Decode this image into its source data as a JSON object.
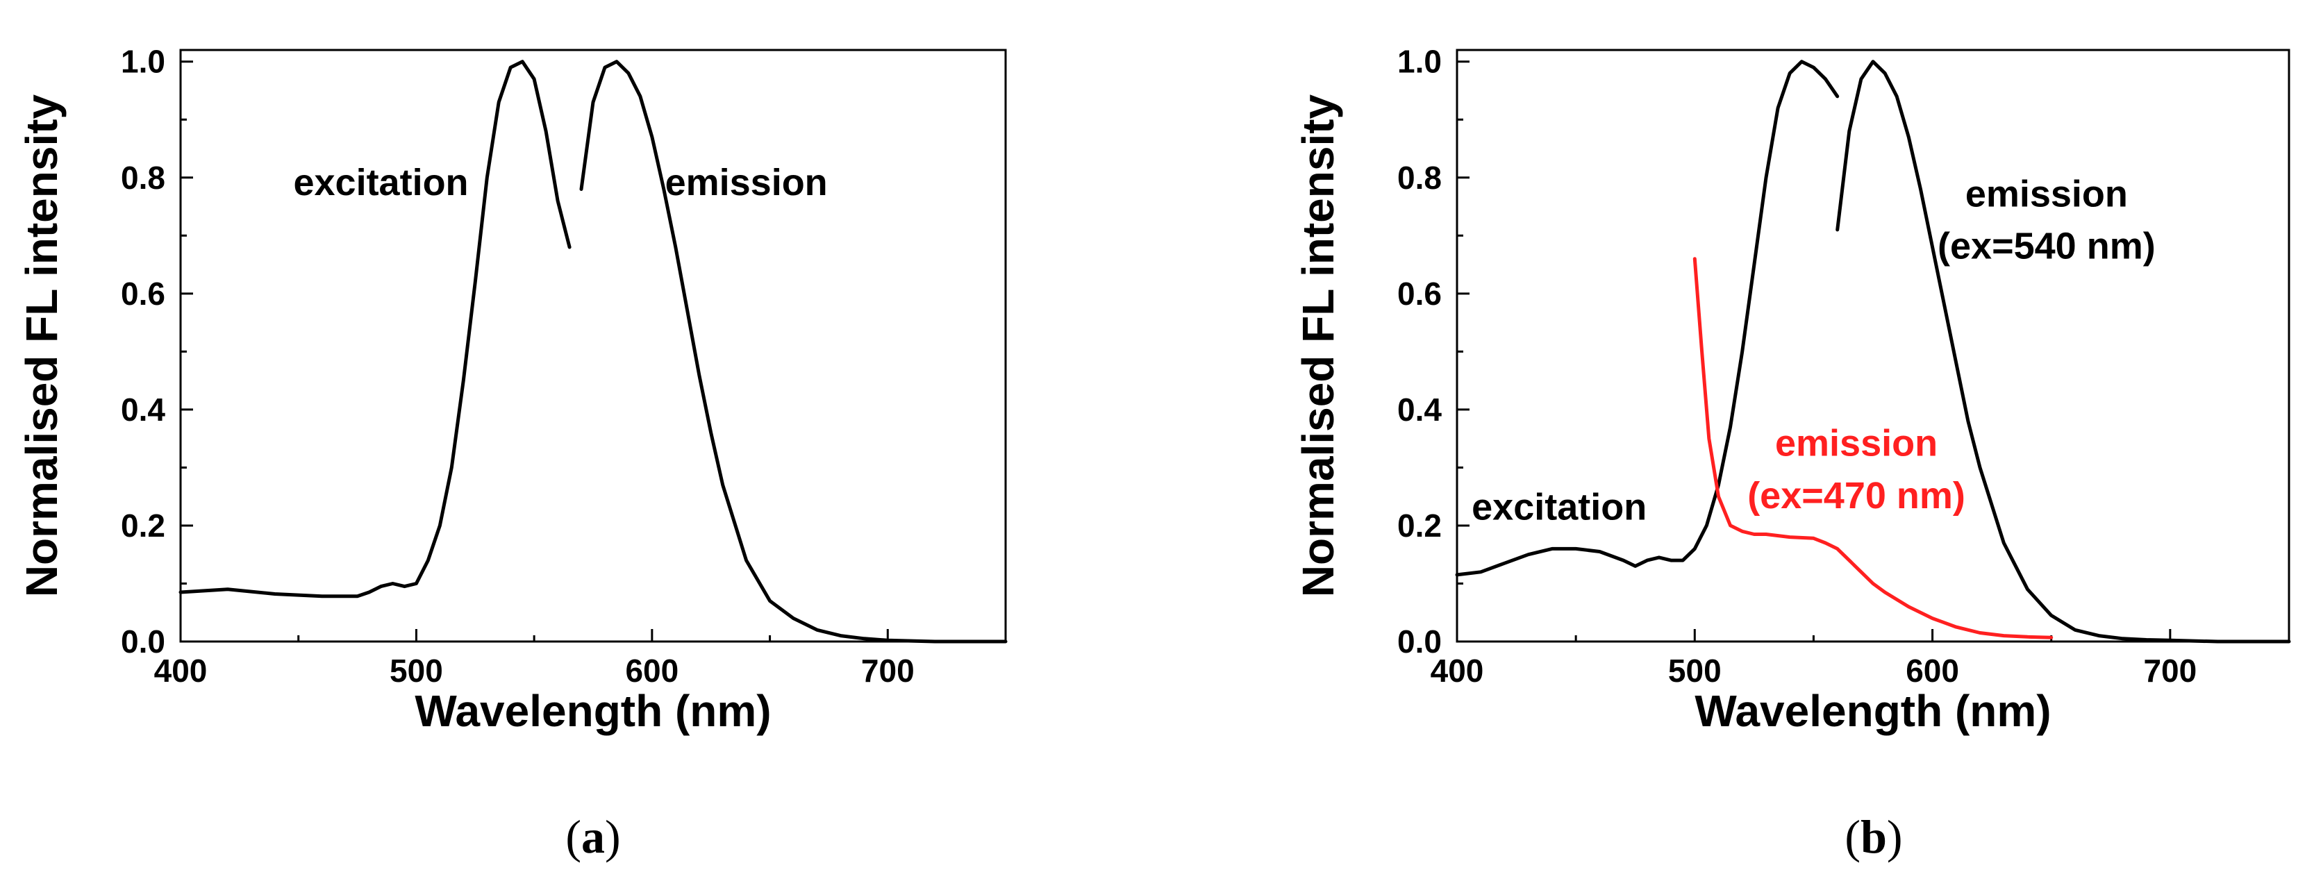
{
  "chart_data": [
    {
      "id": "a",
      "type": "line",
      "caption": {
        "open": "(",
        "letter": "a",
        "close": ")"
      },
      "xlabel": "Wavelength (nm)",
      "ylabel": "Normalised FL intensity",
      "xlim": [
        400,
        750
      ],
      "ylim": [
        0,
        1.02
      ],
      "xticks": [
        400,
        500,
        600,
        700
      ],
      "xtick_labels": [
        "400",
        "500",
        "600",
        "700"
      ],
      "yticks": [
        0.0,
        0.2,
        0.4,
        0.6,
        0.8,
        1.0
      ],
      "ytick_labels": [
        "0.0",
        "0.2",
        "0.4",
        "0.6",
        "0.8",
        "1.0"
      ],
      "series": [
        {
          "color": "#000000",
          "x": [
            400,
            420,
            440,
            460,
            475,
            480,
            485,
            490,
            495,
            500,
            505,
            510,
            515,
            520,
            525,
            530,
            535,
            540,
            545,
            550,
            555,
            560,
            565
          ],
          "y": [
            0.085,
            0.09,
            0.082,
            0.078,
            0.078,
            0.085,
            0.095,
            0.1,
            0.095,
            0.1,
            0.14,
            0.2,
            0.3,
            0.45,
            0.62,
            0.8,
            0.93,
            0.99,
            1.0,
            0.97,
            0.88,
            0.76,
            0.68
          ]
        },
        {
          "color": "#000000",
          "x": [
            570,
            575,
            580,
            585,
            590,
            595,
            600,
            605,
            610,
            615,
            620,
            625,
            630,
            640,
            650,
            660,
            670,
            680,
            690,
            700,
            720,
            750
          ],
          "y": [
            0.78,
            0.93,
            0.99,
            1.0,
            0.98,
            0.94,
            0.87,
            0.78,
            0.68,
            0.57,
            0.46,
            0.36,
            0.27,
            0.14,
            0.07,
            0.04,
            0.02,
            0.01,
            0.005,
            0.002,
            0.0,
            0.0
          ]
        }
      ],
      "annotations": [
        {
          "text": "excitation",
          "x": 485,
          "y": 0.77,
          "color": "#000000"
        },
        {
          "text": "emission",
          "x": 640,
          "y": 0.77,
          "color": "#000000"
        }
      ]
    },
    {
      "id": "b",
      "type": "line",
      "caption": {
        "open": "(",
        "letter": "b",
        "close": ")"
      },
      "xlabel": "Wavelength (nm)",
      "ylabel": "Normalised FL intensity",
      "xlim": [
        400,
        750
      ],
      "ylim": [
        0,
        1.02
      ],
      "xticks": [
        400,
        500,
        600,
        700
      ],
      "xtick_labels": [
        "400",
        "500",
        "600",
        "700"
      ],
      "yticks": [
        0.0,
        0.2,
        0.4,
        0.6,
        0.8,
        1.0
      ],
      "ytick_labels": [
        "0.0",
        "0.2",
        "0.4",
        "0.6",
        "0.8",
        "1.0"
      ],
      "series": [
        {
          "color": "#000000",
          "x": [
            400,
            410,
            420,
            430,
            440,
            450,
            460,
            470,
            475,
            480,
            485,
            490,
            495,
            500,
            505,
            510,
            515,
            520,
            525,
            530,
            535,
            540,
            545,
            550,
            555,
            560
          ],
          "y": [
            0.115,
            0.12,
            0.135,
            0.15,
            0.16,
            0.16,
            0.155,
            0.14,
            0.13,
            0.14,
            0.145,
            0.14,
            0.14,
            0.16,
            0.2,
            0.27,
            0.37,
            0.5,
            0.65,
            0.8,
            0.92,
            0.98,
            1.0,
            0.99,
            0.97,
            0.94
          ]
        },
        {
          "color": "#000000",
          "x": [
            560,
            565,
            570,
            575,
            580,
            585,
            590,
            595,
            600,
            605,
            610,
            615,
            620,
            630,
            640,
            650,
            660,
            670,
            680,
            690,
            700,
            720,
            750
          ],
          "y": [
            0.71,
            0.88,
            0.97,
            1.0,
            0.98,
            0.94,
            0.87,
            0.78,
            0.68,
            0.58,
            0.48,
            0.38,
            0.3,
            0.17,
            0.09,
            0.045,
            0.02,
            0.01,
            0.005,
            0.003,
            0.002,
            0.0,
            0.0
          ]
        },
        {
          "color": "#ff2020",
          "x": [
            500,
            503,
            506,
            510,
            515,
            520,
            525,
            530,
            540,
            550,
            555,
            560,
            565,
            570,
            575,
            580,
            590,
            600,
            610,
            620,
            630,
            640,
            650
          ],
          "y": [
            0.66,
            0.5,
            0.35,
            0.25,
            0.2,
            0.19,
            0.185,
            0.185,
            0.18,
            0.178,
            0.17,
            0.16,
            0.14,
            0.12,
            0.1,
            0.085,
            0.06,
            0.04,
            0.025,
            0.015,
            0.01,
            0.008,
            0.007
          ]
        }
      ],
      "annotations": [
        {
          "text": "excitation",
          "x": 443,
          "y": 0.21,
          "color": "#000000"
        },
        {
          "text": "emission",
          "x": 648,
          "y": 0.75,
          "color": "#000000"
        },
        {
          "text": "(ex=540 nm)",
          "x": 648,
          "y": 0.66,
          "color": "#000000"
        },
        {
          "text": "emission",
          "x": 568,
          "y": 0.32,
          "color": "#ff2020"
        },
        {
          "text": "(ex=470 nm)",
          "x": 568,
          "y": 0.23,
          "color": "#ff2020"
        }
      ]
    }
  ]
}
